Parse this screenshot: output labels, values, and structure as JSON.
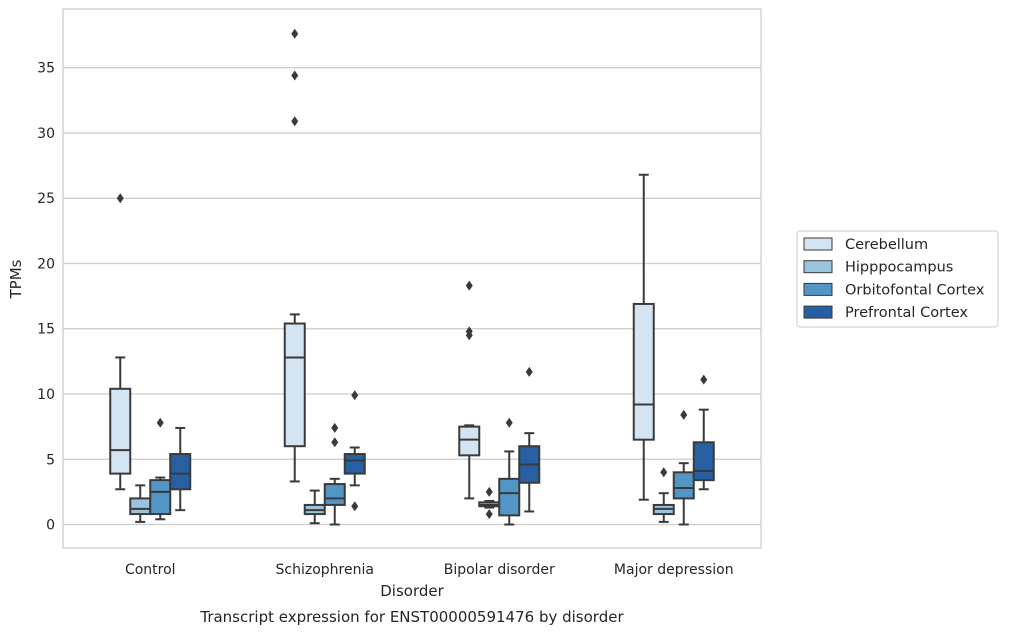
{
  "chart_data": {
    "type": "boxplot",
    "caption": "Transcript expression for ENST00000591476 by disorder",
    "xlabel": "Disorder",
    "ylabel": "TPMs",
    "ylim": [
      -1.8,
      39.5
    ],
    "yticks": [
      0,
      5,
      10,
      15,
      20,
      25,
      30,
      35
    ],
    "grid": "horizontal",
    "legend_position": "right",
    "categories": [
      "Control",
      "Schizophrenia",
      "Bipolar disorder",
      "Major depression"
    ],
    "series": [
      {
        "name": "Cerebellum",
        "color": "#d5e4f2",
        "boxes": [
          {
            "whislo": 2.7,
            "q1": 3.9,
            "med": 5.7,
            "q3": 10.4,
            "whishi": 12.8,
            "fliers": [
              25.0
            ]
          },
          {
            "whislo": 3.3,
            "q1": 6.0,
            "med": 12.8,
            "q3": 15.4,
            "whishi": 16.1,
            "fliers": [
              30.9,
              34.4,
              37.6
            ]
          },
          {
            "whislo": 2.0,
            "q1": 5.3,
            "med": 6.5,
            "q3": 7.5,
            "whishi": 7.6,
            "fliers": [
              14.5,
              14.8,
              18.3
            ]
          },
          {
            "whislo": 1.9,
            "q1": 6.5,
            "med": 9.2,
            "q3": 16.9,
            "whishi": 26.8,
            "fliers": []
          }
        ]
      },
      {
        "name": "Hipppocampus",
        "color": "#9ac3de",
        "boxes": [
          {
            "whislo": 0.2,
            "q1": 0.8,
            "med": 1.2,
            "q3": 2.0,
            "whishi": 3.0,
            "fliers": []
          },
          {
            "whislo": 0.1,
            "q1": 0.8,
            "med": 1.1,
            "q3": 1.5,
            "whishi": 2.6,
            "fliers": []
          },
          {
            "whislo": 1.3,
            "q1": 1.4,
            "med": 1.5,
            "q3": 1.7,
            "whishi": 1.8,
            "fliers": [
              0.8,
              2.5
            ]
          },
          {
            "whislo": 0.2,
            "q1": 0.8,
            "med": 1.2,
            "q3": 1.5,
            "whishi": 2.4,
            "fliers": [
              4.0
            ]
          }
        ]
      },
      {
        "name": "Orbitofontal Cortex",
        "color": "#5396c5",
        "boxes": [
          {
            "whislo": 0.4,
            "q1": 0.8,
            "med": 2.5,
            "q3": 3.4,
            "whishi": 3.6,
            "fliers": [
              7.8
            ]
          },
          {
            "whislo": 0.0,
            "q1": 1.5,
            "med": 2.0,
            "q3": 3.1,
            "whishi": 3.5,
            "fliers": [
              6.3,
              7.4
            ]
          },
          {
            "whislo": 0.0,
            "q1": 0.7,
            "med": 2.4,
            "q3": 3.5,
            "whishi": 5.6,
            "fliers": [
              7.8
            ]
          },
          {
            "whislo": 0.0,
            "q1": 2.0,
            "med": 2.8,
            "q3": 4.0,
            "whishi": 4.7,
            "fliers": [
              8.4
            ]
          }
        ]
      },
      {
        "name": "Prefrontal Cortex",
        "color": "#2660a3",
        "boxes": [
          {
            "whislo": 1.1,
            "q1": 2.7,
            "med": 3.9,
            "q3": 5.4,
            "whishi": 7.4,
            "fliers": []
          },
          {
            "whislo": 3.0,
            "q1": 3.9,
            "med": 4.9,
            "q3": 5.4,
            "whishi": 5.9,
            "fliers": [
              1.4,
              9.9
            ]
          },
          {
            "whislo": 1.0,
            "q1": 3.2,
            "med": 4.6,
            "q3": 6.0,
            "whishi": 7.0,
            "fliers": [
              11.7
            ]
          },
          {
            "whislo": 2.7,
            "q1": 3.4,
            "med": 4.1,
            "q3": 6.3,
            "whishi": 8.8,
            "fliers": [
              11.1
            ]
          }
        ]
      }
    ]
  }
}
